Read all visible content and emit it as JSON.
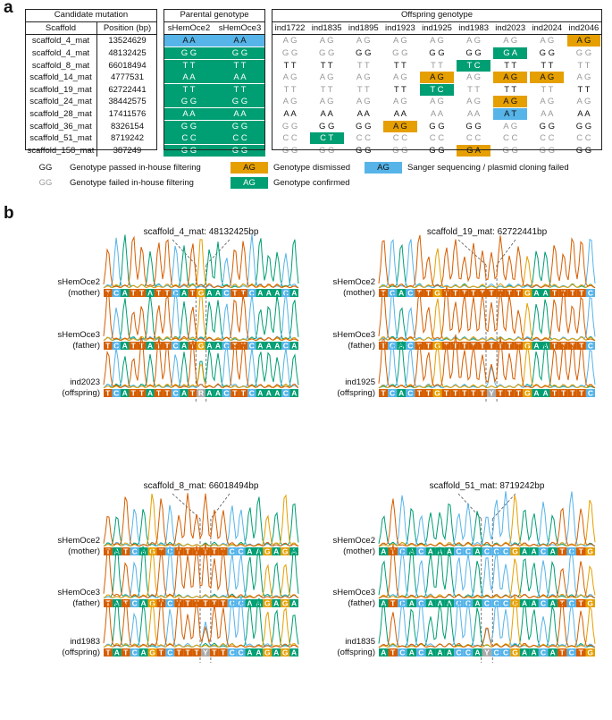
{
  "panel_a_label": "a",
  "panel_b_label": "b",
  "table": {
    "candidate_header": "Candidate mutation",
    "scaffold_header": "Scaffold",
    "position_header": "Position (bp)",
    "parental_header": "Parental genotype",
    "parents": [
      "sHemOce2",
      "sHemOce3"
    ],
    "offspring_header": "Offspring genotype",
    "offspring": [
      "ind1722",
      "ind1835",
      "ind1895",
      "ind1923",
      "ind1925",
      "ind1983",
      "ind2023",
      "ind2024",
      "ind2046"
    ],
    "rows": [
      {
        "scaffold": "scaffold_4_mat",
        "position": "13524629",
        "parents": [
          [
            "AA",
            "sang"
          ],
          [
            "AA",
            "sang"
          ]
        ],
        "offspring": [
          [
            "AG",
            "fail"
          ],
          [
            "AG",
            "fail"
          ],
          [
            "AG",
            "fail"
          ],
          [
            "AG",
            "fail"
          ],
          [
            "AG",
            "fail"
          ],
          [
            "AG",
            "fail"
          ],
          [
            "AG",
            "fail"
          ],
          [
            "AG",
            "fail"
          ],
          [
            "AG",
            "dis"
          ]
        ]
      },
      {
        "scaffold": "scaffold_4_mat",
        "position": "48132425",
        "parents": [
          [
            "GG",
            "conf"
          ],
          [
            "GG",
            "conf"
          ]
        ],
        "offspring": [
          [
            "GG",
            "fail"
          ],
          [
            "GG",
            "fail"
          ],
          [
            "GG",
            "pass"
          ],
          [
            "GG",
            "fail"
          ],
          [
            "GG",
            "pass"
          ],
          [
            "GG",
            "pass"
          ],
          [
            "GA",
            "conf"
          ],
          [
            "GG",
            "pass"
          ],
          [
            "GG",
            "fail"
          ]
        ]
      },
      {
        "scaffold": "scaffold_8_mat",
        "position": "66018494",
        "parents": [
          [
            "TT",
            "conf"
          ],
          [
            "TT",
            "conf"
          ]
        ],
        "offspring": [
          [
            "TT",
            "pass"
          ],
          [
            "TT",
            "pass"
          ],
          [
            "TT",
            "fail"
          ],
          [
            "TT",
            "pass"
          ],
          [
            "TT",
            "fail"
          ],
          [
            "TC",
            "conf"
          ],
          [
            "TT",
            "pass"
          ],
          [
            "TT",
            "pass"
          ],
          [
            "TT",
            "fail"
          ]
        ]
      },
      {
        "scaffold": "scaffold_14_mat",
        "position": "4777531",
        "parents": [
          [
            "AA",
            "conf"
          ],
          [
            "AA",
            "conf"
          ]
        ],
        "offspring": [
          [
            "AG",
            "fail"
          ],
          [
            "AG",
            "fail"
          ],
          [
            "AG",
            "fail"
          ],
          [
            "AG",
            "fail"
          ],
          [
            "AG",
            "dis"
          ],
          [
            "AG",
            "fail"
          ],
          [
            "AG",
            "dis"
          ],
          [
            "AG",
            "dis"
          ],
          [
            "AG",
            "fail"
          ]
        ]
      },
      {
        "scaffold": "scaffold_19_mat",
        "position": "62722441",
        "parents": [
          [
            "TT",
            "conf"
          ],
          [
            "TT",
            "conf"
          ]
        ],
        "offspring": [
          [
            "TT",
            "fail"
          ],
          [
            "TT",
            "fail"
          ],
          [
            "TT",
            "fail"
          ],
          [
            "TT",
            "pass"
          ],
          [
            "TC",
            "conf"
          ],
          [
            "TT",
            "fail"
          ],
          [
            "TT",
            "pass"
          ],
          [
            "TT",
            "fail"
          ],
          [
            "TT",
            "pass"
          ]
        ]
      },
      {
        "scaffold": "scaffold_24_mat",
        "position": "38442575",
        "parents": [
          [
            "GG",
            "conf"
          ],
          [
            "GG",
            "conf"
          ]
        ],
        "offspring": [
          [
            "AG",
            "fail"
          ],
          [
            "AG",
            "fail"
          ],
          [
            "AG",
            "fail"
          ],
          [
            "AG",
            "fail"
          ],
          [
            "AG",
            "fail"
          ],
          [
            "AG",
            "fail"
          ],
          [
            "AG",
            "dis"
          ],
          [
            "AG",
            "fail"
          ],
          [
            "AG",
            "fail"
          ]
        ]
      },
      {
        "scaffold": "scaffold_28_mat",
        "position": "17411576",
        "parents": [
          [
            "AA",
            "conf"
          ],
          [
            "AA",
            "conf"
          ]
        ],
        "offspring": [
          [
            "AA",
            "pass"
          ],
          [
            "AA",
            "pass"
          ],
          [
            "AA",
            "pass"
          ],
          [
            "AA",
            "pass"
          ],
          [
            "AA",
            "fail"
          ],
          [
            "AA",
            "fail"
          ],
          [
            "AT",
            "sang"
          ],
          [
            "AA",
            "fail"
          ],
          [
            "AA",
            "pass"
          ]
        ]
      },
      {
        "scaffold": "scaffold_36_mat",
        "position": "8326154",
        "parents": [
          [
            "GG",
            "conf"
          ],
          [
            "GG",
            "conf"
          ]
        ],
        "offspring": [
          [
            "GG",
            "fail"
          ],
          [
            "GG",
            "pass"
          ],
          [
            "GG",
            "pass"
          ],
          [
            "AG",
            "dis"
          ],
          [
            "GG",
            "pass"
          ],
          [
            "GG",
            "pass"
          ],
          [
            "AG",
            "fail"
          ],
          [
            "GG",
            "pass"
          ],
          [
            "GG",
            "pass"
          ]
        ]
      },
      {
        "scaffold": "scaffold_51_mat",
        "position": "8719242",
        "parents": [
          [
            "CC",
            "conf"
          ],
          [
            "CC",
            "conf"
          ]
        ],
        "offspring": [
          [
            "CC",
            "fail"
          ],
          [
            "CT",
            "conf"
          ],
          [
            "CC",
            "fail"
          ],
          [
            "CC",
            "fail"
          ],
          [
            "CC",
            "fail"
          ],
          [
            "CC",
            "fail"
          ],
          [
            "CC",
            "fail"
          ],
          [
            "CC",
            "fail"
          ],
          [
            "CC",
            "fail"
          ]
        ]
      },
      {
        "scaffold": "scaffold_158_mat",
        "position": "387249",
        "parents": [
          [
            "GG",
            "conf"
          ],
          [
            "GG",
            "conf"
          ]
        ],
        "offspring": [
          [
            "GG",
            "fail"
          ],
          [
            "GG",
            "fail"
          ],
          [
            "GG",
            "pass"
          ],
          [
            "GG",
            "fail"
          ],
          [
            "GG",
            "pass"
          ],
          [
            "GA",
            "dis"
          ],
          [
            "GG",
            "fail"
          ],
          [
            "GG",
            "fail"
          ],
          [
            "GG",
            "pass"
          ]
        ]
      }
    ]
  },
  "legend": {
    "passed": {
      "swatch": "GG",
      "text": "Genotype passed in-house filtering"
    },
    "failed": {
      "swatch": "GG",
      "text": "Genotype failed in-house filtering"
    },
    "dismissed": {
      "swatch": "AG",
      "text": "Genotype dismissed"
    },
    "confirmed": {
      "swatch": "AG",
      "text": "Genotype confirmed"
    },
    "sanger": {
      "swatch": "AG",
      "text": "Sanger sequencing / plasmid cloning failed"
    }
  },
  "colors": {
    "A": "#009e73",
    "C": "#56b4e9",
    "G": "#111111",
    "T": "#d55e00",
    "R": "#999999",
    "Y": "#999999",
    "orange": "#e69f00",
    "green": "#009e73",
    "blue": "#56b4e9"
  },
  "traces": [
    {
      "title": "scaffold_4_mat: 48132425bp",
      "seqs": [
        "TCATTATTCATGAACTTCAAACA",
        "TCATTATTCATGAACTTCAAACA",
        "TCATTATTCATRAACTTCAAACA"
      ],
      "labels": [
        [
          "sHemOce2",
          "(mother)"
        ],
        [
          "sHemOce3",
          "(father)"
        ],
        [
          "ind2023",
          "(offspring)"
        ]
      ]
    },
    {
      "title": "scaffold_19_mat: 62722441bp",
      "seqs": [
        "TCACTTGTTTTTTTTTGAATTTTC",
        "TCACTTGTTTTTTTTTGAATTTTC",
        "TCACTTGTTTTTYTTTGAATTTTC"
      ],
      "labels": [
        [
          "sHemOce2",
          "(mother)"
        ],
        [
          "sHemOce3",
          "(father)"
        ],
        [
          "ind1925",
          "(offspring)"
        ]
      ]
    },
    {
      "title": "scaffold_8_mat: 66018494bp",
      "seqs": [
        "TATCAGTCTTTTTTCCAAGAGA",
        "TATCAGTCTTTTTTCCAAGAGA",
        "TATCAGTCTTTYTTCCAAGAGA"
      ],
      "labels": [
        [
          "sHemOce2",
          "(mother)"
        ],
        [
          "sHemOce3",
          "(father)"
        ],
        [
          "ind1983",
          "(offspring)"
        ]
      ]
    },
    {
      "title": "scaffold_51_mat: 8719242bp",
      "seqs": [
        "ATCACAAACCACCCGAACATCTG",
        "ATCACAAACCACCCGAACATCTG",
        "ATCACAAACCAYCCGAACATCTG"
      ],
      "labels": [
        [
          "sHemOce2",
          "(mother)"
        ],
        [
          "sHemOce3",
          "(father)"
        ],
        [
          "ind1835",
          "(offspring)"
        ]
      ]
    }
  ]
}
